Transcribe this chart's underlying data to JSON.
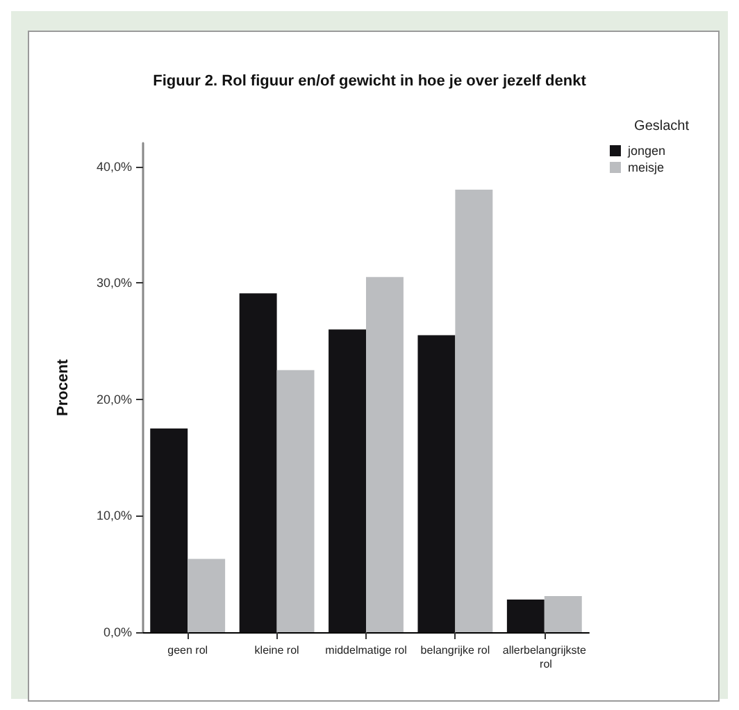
{
  "chart_data": {
    "type": "bar",
    "title": "Figuur 2. Rol figuur en/of gewicht in hoe je over jezelf denkt",
    "ylabel": "Procent",
    "legend_title": "Geslacht",
    "categories": [
      "geen rol",
      "kleine rol",
      "middelmatige rol",
      "belangrijke rol",
      "allerbelangrijkste rol"
    ],
    "series": [
      {
        "name": "jongen",
        "color": "#131215",
        "values": [
          17.5,
          29.1,
          26.0,
          25.5,
          2.8
        ]
      },
      {
        "name": "meisje",
        "color": "#bbbdc0",
        "values": [
          6.3,
          22.5,
          30.5,
          38.0,
          3.1
        ]
      }
    ],
    "ylim": [
      0,
      42
    ],
    "yticks": [
      {
        "value": 0,
        "label": "0,0%"
      },
      {
        "value": 10,
        "label": "10,0%"
      },
      {
        "value": 20,
        "label": "20,0%"
      },
      {
        "value": 30,
        "label": "30,0%"
      },
      {
        "value": 40,
        "label": "40,0%"
      }
    ],
    "grid": false,
    "legend": "top right"
  }
}
